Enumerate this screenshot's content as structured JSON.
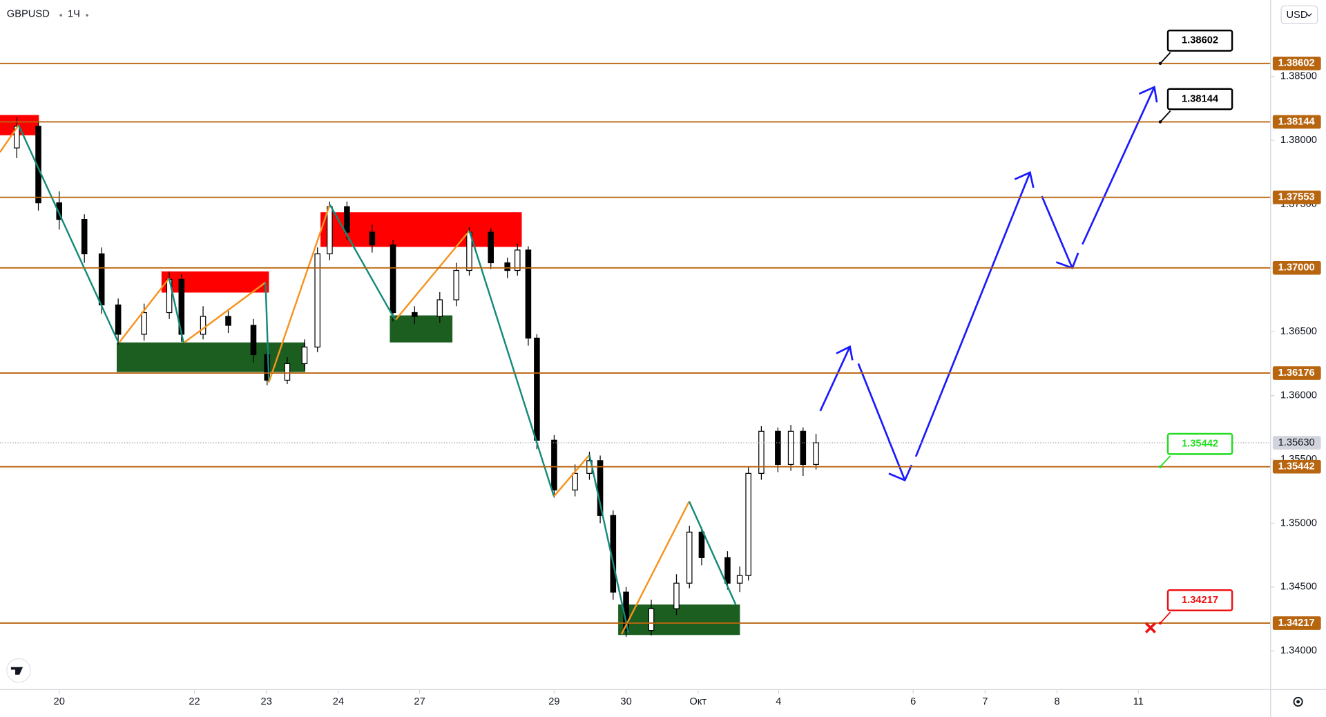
{
  "chart_data": {
    "type": "candlestick",
    "title": "GBPUSD",
    "interval": "1Ч",
    "currency": "USD",
    "x": [
      -0.59,
      -0.29,
      0,
      0.35,
      0.59,
      0.82,
      1.18,
      1.53,
      1.7,
      2.0,
      2.35,
      2.7,
      2.89,
      3.17,
      3.41,
      3.59,
      3.76,
      4.0,
      4.35,
      4.64,
      4.94,
      5.29,
      5.52,
      5.7,
      6.0,
      6.23,
      6.37,
      6.52,
      6.64,
      6.88,
      7.17,
      7.37,
      7.52,
      7.7,
      7.88,
      8.23,
      8.58,
      8.76,
      8.93,
      9.29,
      9.46,
      9.58,
      9.76,
      9.99,
      10.17,
      10.34,
      10.52
    ],
    "open": [
      1.3794,
      1.3811,
      1.3751,
      1.3738,
      1.3711,
      1.3671,
      1.3648,
      1.3665,
      1.3691,
      1.3648,
      1.3662,
      1.3655,
      1.3632,
      1.3612,
      1.3625,
      1.3638,
      1.3711,
      1.3748,
      1.3728,
      1.3718,
      1.3665,
      1.3662,
      1.3675,
      1.3698,
      1.3728,
      1.3704,
      1.3698,
      1.3714,
      1.3645,
      1.3565,
      1.3526,
      1.3539,
      1.3549,
      1.3506,
      1.3446,
      1.3416,
      1.3433,
      1.3453,
      1.3493,
      1.3473,
      1.3453,
      1.3459,
      1.3539,
      1.3572,
      1.3546,
      1.3572,
      1.3546
    ],
    "high": [
      1.3818,
      1.3815,
      1.376,
      1.3742,
      1.3716,
      1.3676,
      1.3672,
      1.3697,
      1.3695,
      1.367,
      1.3668,
      1.366,
      1.3636,
      1.363,
      1.3644,
      1.3716,
      1.3752,
      1.3752,
      1.3734,
      1.3722,
      1.367,
      1.3681,
      1.3704,
      1.3732,
      1.3731,
      1.3708,
      1.3719,
      1.3717,
      1.3648,
      1.3569,
      1.3546,
      1.3556,
      1.3553,
      1.351,
      1.345,
      1.344,
      1.346,
      1.3498,
      1.3497,
      1.3478,
      1.3466,
      1.3544,
      1.3576,
      1.3575,
      1.3577,
      1.3575,
      1.357
    ],
    "low": [
      1.3786,
      1.3745,
      1.373,
      1.3704,
      1.3664,
      1.364,
      1.3643,
      1.366,
      1.3642,
      1.3644,
      1.3649,
      1.3626,
      1.3608,
      1.3609,
      1.362,
      1.3634,
      1.3706,
      1.3722,
      1.3712,
      1.3658,
      1.3656,
      1.3657,
      1.367,
      1.3694,
      1.3699,
      1.3692,
      1.3694,
      1.3639,
      1.3558,
      1.352,
      1.3521,
      1.3534,
      1.35,
      1.344,
      1.3411,
      1.3412,
      1.3428,
      1.3449,
      1.3467,
      1.3448,
      1.3446,
      1.3455,
      1.3534,
      1.354,
      1.3541,
      1.3537,
      1.3542
    ],
    "close": [
      1.3811,
      1.3751,
      1.3738,
      1.3711,
      1.3671,
      1.3648,
      1.3665,
      1.3691,
      1.3648,
      1.3662,
      1.3655,
      1.3632,
      1.3612,
      1.3625,
      1.3638,
      1.3711,
      1.3748,
      1.3728,
      1.3718,
      1.3665,
      1.3662,
      1.3675,
      1.3698,
      1.3728,
      1.3704,
      1.3698,
      1.3714,
      1.3645,
      1.3565,
      1.3526,
      1.3539,
      1.3549,
      1.3506,
      1.3446,
      1.3416,
      1.3433,
      1.3453,
      1.3493,
      1.3473,
      1.3453,
      1.3459,
      1.3539,
      1.3572,
      1.3546,
      1.3572,
      1.3546,
      1.3563
    ],
    "up_color": "#ffffff",
    "down_color": "#000000",
    "xlim": [
      -0.823,
      16.833
    ],
    "xticks": [
      {
        "value": 0,
        "label": "20"
      },
      {
        "value": 1.88,
        "label": "22"
      },
      {
        "value": 2.88,
        "label": "23"
      },
      {
        "value": 3.88,
        "label": "24"
      },
      {
        "value": 5.01,
        "label": "27"
      },
      {
        "value": 6.88,
        "label": "29"
      },
      {
        "value": 7.88,
        "label": "30"
      },
      {
        "value": 8.88,
        "label": "Окт"
      },
      {
        "value": 10.0,
        "label": "4"
      },
      {
        "value": 11.87,
        "label": "6"
      },
      {
        "value": 12.87,
        "label": "7"
      },
      {
        "value": 13.87,
        "label": "8"
      },
      {
        "value": 15.0,
        "label": "11"
      }
    ],
    "ylim": [
      1.337,
      1.39099
    ],
    "yticks": [
      {
        "value": 1.34,
        "label": "1.34000"
      },
      {
        "value": 1.345,
        "label": "1.34500"
      },
      {
        "value": 1.35,
        "label": "1.35000"
      },
      {
        "value": 1.355,
        "label": "1.35500"
      },
      {
        "value": 1.36,
        "label": "1.36000"
      },
      {
        "value": 1.365,
        "label": "1.36500"
      },
      {
        "value": 1.37,
        "label": "1.37000"
      },
      {
        "value": 1.375,
        "label": "1.37500"
      },
      {
        "value": 1.38,
        "label": "1.38000"
      },
      {
        "value": 1.385,
        "label": "1.38500"
      }
    ],
    "levels": [
      1.38602,
      1.38144,
      1.37553,
      {
        "value": 1.37,
        "label": "1.37000"
      },
      1.36176,
      1.35442,
      1.34217
    ],
    "level_color": "#b8650f",
    "last_price": {
      "value": 1.3563,
      "label": "1.35630"
    },
    "callouts": [
      {
        "value": 1.38602,
        "color": "#000000"
      },
      {
        "value": 1.38144,
        "color": "#000000"
      },
      {
        "value": 1.35442,
        "color": "#22dd22"
      },
      {
        "value": 1.34217,
        "color": "#ee1111"
      }
    ]
  }
}
